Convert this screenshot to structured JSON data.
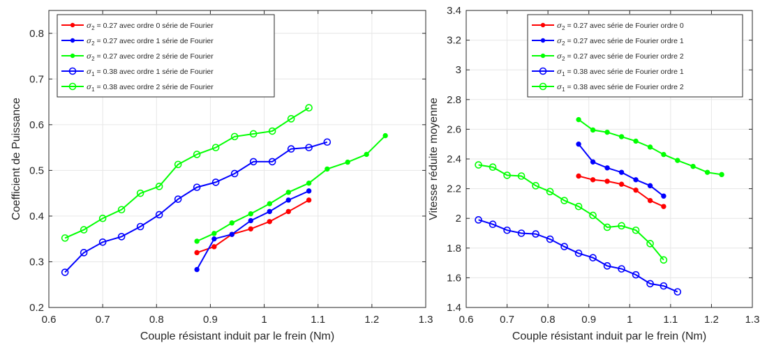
{
  "chart_data": [
    {
      "type": "line",
      "title": "",
      "xlabel": "Couple résistant induit par le frein (Nm)",
      "ylabel": "Coefficient de Puissance",
      "xlim": [
        0.6,
        1.3
      ],
      "ylim": [
        0.2,
        0.85
      ],
      "xticks": [
        "0.6",
        "0.7",
        "0.8",
        "0.9",
        "1",
        "1.1",
        "1.2",
        "1.3"
      ],
      "yticks": [
        "0.2",
        "0.3",
        "0.4",
        "0.5",
        "0.6",
        "0.7",
        "0.8"
      ],
      "legend_position": "top-left",
      "grid": true,
      "series": [
        {
          "sym": "σ",
          "sub": "2",
          "rest": " = 0.27 avec ordre 0 série de Fourier",
          "color": "#ff0000",
          "marker": "dot",
          "x": [
            0.875,
            0.907,
            0.94,
            0.975,
            1.01,
            1.045,
            1.083
          ],
          "y": [
            0.32,
            0.333,
            0.36,
            0.372,
            0.388,
            0.41,
            0.435
          ]
        },
        {
          "sym": "σ",
          "sub": "2",
          "rest": " = 0.27 avec ordre 1 série de Fourier",
          "color": "#0000ff",
          "marker": "dot",
          "x": [
            0.875,
            0.907,
            0.94,
            0.975,
            1.01,
            1.045,
            1.083
          ],
          "y": [
            0.283,
            0.35,
            0.36,
            0.39,
            0.41,
            0.435,
            0.455
          ]
        },
        {
          "sym": "σ",
          "sub": "2",
          "rest": " = 0.27 avec ordre 2 série de Fourier",
          "color": "#00ff00",
          "marker": "dot",
          "x": [
            0.875,
            0.907,
            0.94,
            0.975,
            1.01,
            1.045,
            1.083,
            1.117,
            1.155,
            1.19,
            1.225
          ],
          "y": [
            0.345,
            0.362,
            0.385,
            0.405,
            0.427,
            0.452,
            0.472,
            0.503,
            0.518,
            0.535,
            0.576
          ]
        },
        {
          "sym": "σ",
          "sub": "1",
          "rest": " = 0.38 avec ordre 1 série de Fourier",
          "color": "#0000ff",
          "marker": "circle",
          "x": [
            0.63,
            0.665,
            0.7,
            0.735,
            0.77,
            0.805,
            0.84,
            0.875,
            0.91,
            0.945,
            0.98,
            1.015,
            1.05,
            1.083,
            1.117
          ],
          "y": [
            0.277,
            0.32,
            0.343,
            0.355,
            0.377,
            0.403,
            0.437,
            0.463,
            0.474,
            0.493,
            0.519,
            0.519,
            0.547,
            0.55,
            0.562
          ]
        },
        {
          "sym": "σ",
          "sub": "1",
          "rest": " = 0.38 avec ordre 2 série de Fourier",
          "color": "#00ff00",
          "marker": "circle",
          "x": [
            0.63,
            0.665,
            0.7,
            0.735,
            0.77,
            0.805,
            0.84,
            0.875,
            0.91,
            0.945,
            0.98,
            1.015,
            1.05,
            1.083
          ],
          "y": [
            0.352,
            0.37,
            0.395,
            0.414,
            0.45,
            0.465,
            0.513,
            0.535,
            0.55,
            0.574,
            0.58,
            0.586,
            0.613,
            0.637
          ]
        }
      ]
    },
    {
      "type": "line",
      "title": "",
      "xlabel": "Couple résistant induit par le frein (Nm)",
      "ylabel": "Vitesse réduite moyenne",
      "xlim": [
        0.6,
        1.3
      ],
      "ylim": [
        1.4,
        3.4
      ],
      "xticks": [
        "0.6",
        "0.7",
        "0.8",
        "0.9",
        "1",
        "1.1",
        "1.2",
        "1.3"
      ],
      "yticks": [
        "1.4",
        "1.6",
        "1.8",
        "2",
        "2.2",
        "2.4",
        "2.6",
        "2.8",
        "3",
        "3.2",
        "3.4"
      ],
      "legend_position": "top-right",
      "grid": true,
      "series": [
        {
          "sym": "σ",
          "sub": "2",
          "rest": " = 0.27 avec série de Fourier ordre 0",
          "color": "#ff0000",
          "marker": "dot",
          "x": [
            0.875,
            0.91,
            0.945,
            0.98,
            1.015,
            1.05,
            1.083
          ],
          "y": [
            2.285,
            2.26,
            2.25,
            2.23,
            2.19,
            2.12,
            2.08
          ]
        },
        {
          "sym": "σ",
          "sub": "2",
          "rest": " = 0.27 avec série de Fourier ordre 1",
          "color": "#0000ff",
          "marker": "dot",
          "x": [
            0.875,
            0.91,
            0.945,
            0.98,
            1.015,
            1.05,
            1.083
          ],
          "y": [
            2.5,
            2.38,
            2.34,
            2.31,
            2.26,
            2.22,
            2.15
          ]
        },
        {
          "sym": "σ",
          "sub": "2",
          "rest": " = 0.27 avec série de Fourier ordre 2",
          "color": "#00ff00",
          "marker": "dot",
          "x": [
            0.875,
            0.91,
            0.945,
            0.98,
            1.015,
            1.05,
            1.083,
            1.117,
            1.155,
            1.19,
            1.225
          ],
          "y": [
            2.665,
            2.595,
            2.58,
            2.55,
            2.52,
            2.48,
            2.43,
            2.39,
            2.35,
            2.31,
            2.295
          ]
        },
        {
          "sym": "σ",
          "sub": "1",
          "rest": " = 0.38 avec série de Fourier ordre 1",
          "color": "#0000ff",
          "marker": "circle",
          "x": [
            0.63,
            0.665,
            0.7,
            0.735,
            0.77,
            0.805,
            0.84,
            0.875,
            0.91,
            0.945,
            0.98,
            1.015,
            1.05,
            1.083,
            1.117
          ],
          "y": [
            1.99,
            1.96,
            1.92,
            1.9,
            1.895,
            1.86,
            1.81,
            1.765,
            1.735,
            1.68,
            1.66,
            1.62,
            1.56,
            1.545,
            1.505
          ]
        },
        {
          "sym": "σ",
          "sub": "1",
          "rest": " = 0.38 avec série de Fourier ordre 2",
          "color": "#00ff00",
          "marker": "circle",
          "x": [
            0.63,
            0.665,
            0.7,
            0.735,
            0.77,
            0.805,
            0.84,
            0.875,
            0.91,
            0.945,
            0.98,
            1.015,
            1.05,
            1.083
          ],
          "y": [
            2.36,
            2.345,
            2.29,
            2.285,
            2.22,
            2.18,
            2.12,
            2.08,
            2.02,
            1.94,
            1.95,
            1.92,
            1.83,
            1.72
          ]
        }
      ]
    }
  ]
}
